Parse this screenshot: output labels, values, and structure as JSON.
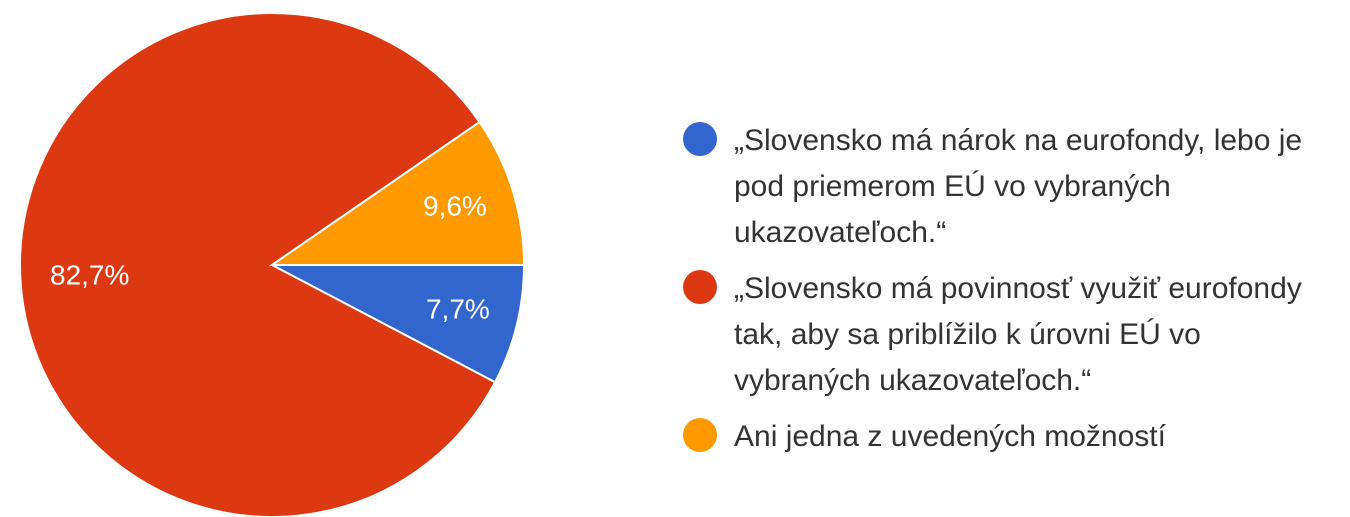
{
  "chart_data": {
    "type": "pie",
    "slices": [
      {
        "label": "„Slovensko má nárok na eurofondy, lebo je pod priemerom EÚ vo vybraných ukazovateľoch.“",
        "value": 7.7,
        "value_label": "7,7%",
        "color": "#3366cc"
      },
      {
        "label": "„Slovensko má povinnosť využiť eurofondy tak, aby sa priblížilo k úrovni EÚ vo vybraných ukazovateľoch.“",
        "value": 82.7,
        "value_label": "82,7%",
        "color": "#dc3912"
      },
      {
        "label": "Ani jedna z uvedených možností",
        "value": 9.6,
        "value_label": "9,6%",
        "color": "#ff9900"
      }
    ],
    "legend_position": "right",
    "start_angle": "3 o'clock",
    "direction": "clockwise"
  }
}
